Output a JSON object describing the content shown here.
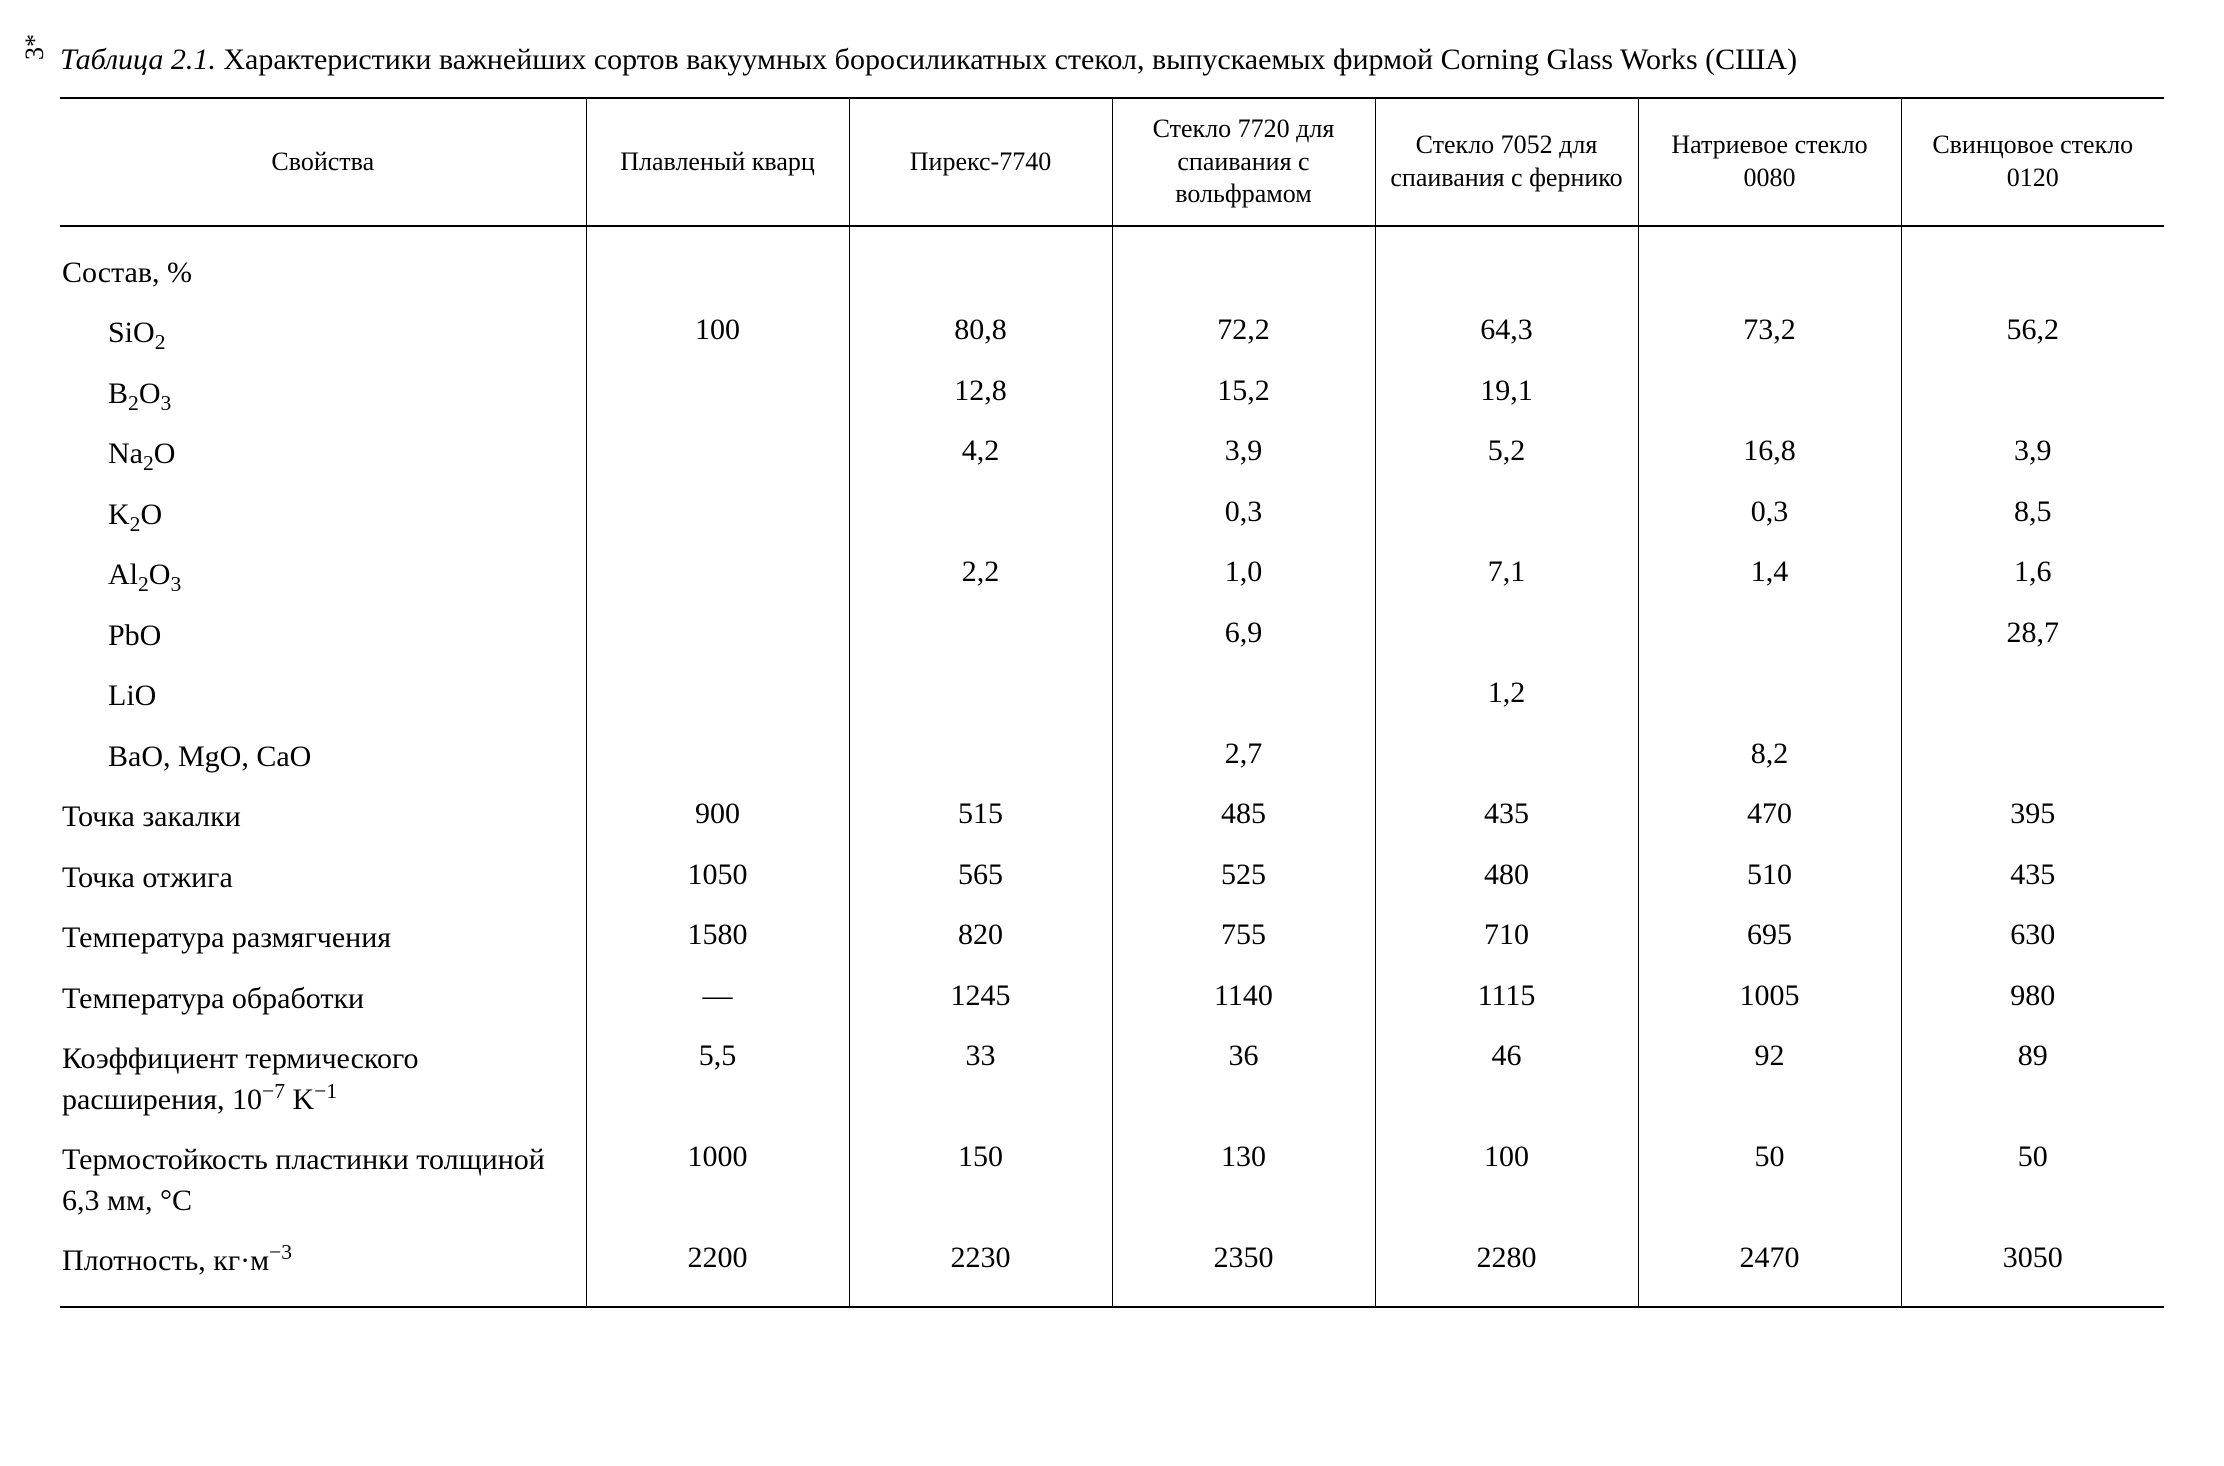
{
  "page_marker": "3*",
  "caption_prefix_italic": "Таблица 2.1.",
  "caption_rest": " Характеристики важнейших сортов вакуумных боросиликатных стекол, выпускаемых фирмой Corning Glass Works (США)",
  "table": {
    "columns": [
      "Свойства",
      "Плавленый кварц",
      "Пирекс-7740",
      "Стекло 7720 для спаивания с вольфрамом",
      "Стекло 7052 для спаивания с фернико",
      "Натриевое стекло 0080",
      "Свинцовое стекло 0120"
    ],
    "rows": [
      {
        "label_html": "Состав, %",
        "indent": false,
        "cells": [
          "",
          "",
          "",
          "",
          "",
          ""
        ]
      },
      {
        "label_html": "SiO<sub>2</sub>",
        "indent": true,
        "cells": [
          "100",
          "80,8",
          "72,2",
          "64,3",
          "73,2",
          "56,2"
        ]
      },
      {
        "label_html": "B<sub>2</sub>O<sub>3</sub>",
        "indent": true,
        "cells": [
          "",
          "12,8",
          "15,2",
          "19,1",
          "",
          ""
        ]
      },
      {
        "label_html": "Na<sub>2</sub>O",
        "indent": true,
        "cells": [
          "",
          "4,2",
          "3,9",
          "5,2",
          "16,8",
          "3,9"
        ]
      },
      {
        "label_html": "K<sub>2</sub>O",
        "indent": true,
        "cells": [
          "",
          "",
          "0,3",
          "",
          "0,3",
          "8,5"
        ]
      },
      {
        "label_html": "Al<sub>2</sub>O<sub>3</sub>",
        "indent": true,
        "cells": [
          "",
          "2,2",
          "1,0",
          "7,1",
          "1,4",
          "1,6"
        ]
      },
      {
        "label_html": "PbO",
        "indent": true,
        "cells": [
          "",
          "",
          "6,9",
          "",
          "",
          "28,7"
        ]
      },
      {
        "label_html": "LiO",
        "indent": true,
        "cells": [
          "",
          "",
          "",
          "1,2",
          "",
          ""
        ]
      },
      {
        "label_html": "BaO, MgO, CaO",
        "indent": true,
        "cells": [
          "",
          "",
          "2,7",
          "",
          "8,2",
          ""
        ]
      },
      {
        "label_html": "Точка закалки",
        "indent": false,
        "cells": [
          "900",
          "515",
          "485",
          "435",
          "470",
          "395"
        ]
      },
      {
        "label_html": "Точка отжига",
        "indent": false,
        "cells": [
          "1050",
          "565",
          "525",
          "480",
          "510",
          "435"
        ]
      },
      {
        "label_html": "Температура размягчения",
        "indent": false,
        "cells": [
          "1580",
          "820",
          "755",
          "710",
          "695",
          "630"
        ]
      },
      {
        "label_html": "Температура обработки",
        "indent": false,
        "cells": [
          "—",
          "1245",
          "1140",
          "1115",
          "1005",
          "980"
        ]
      },
      {
        "label_html": "Коэффициент термического расширения, 10<sup>−7</sup> K<sup>−1</sup>",
        "indent": false,
        "cells": [
          "5,5",
          "33",
          "36",
          "46",
          "92",
          "89"
        ]
      },
      {
        "label_html": "Термостойкость пластинки толщиной 6,3 мм, °C",
        "indent": false,
        "cells": [
          "1000",
          "150",
          "130",
          "100",
          "50",
          "50"
        ]
      },
      {
        "label_html": "Плотность, кг·м<sup>−3</sup>",
        "indent": false,
        "cells": [
          "2200",
          "2230",
          "2350",
          "2280",
          "2470",
          "3050"
        ]
      }
    ]
  }
}
